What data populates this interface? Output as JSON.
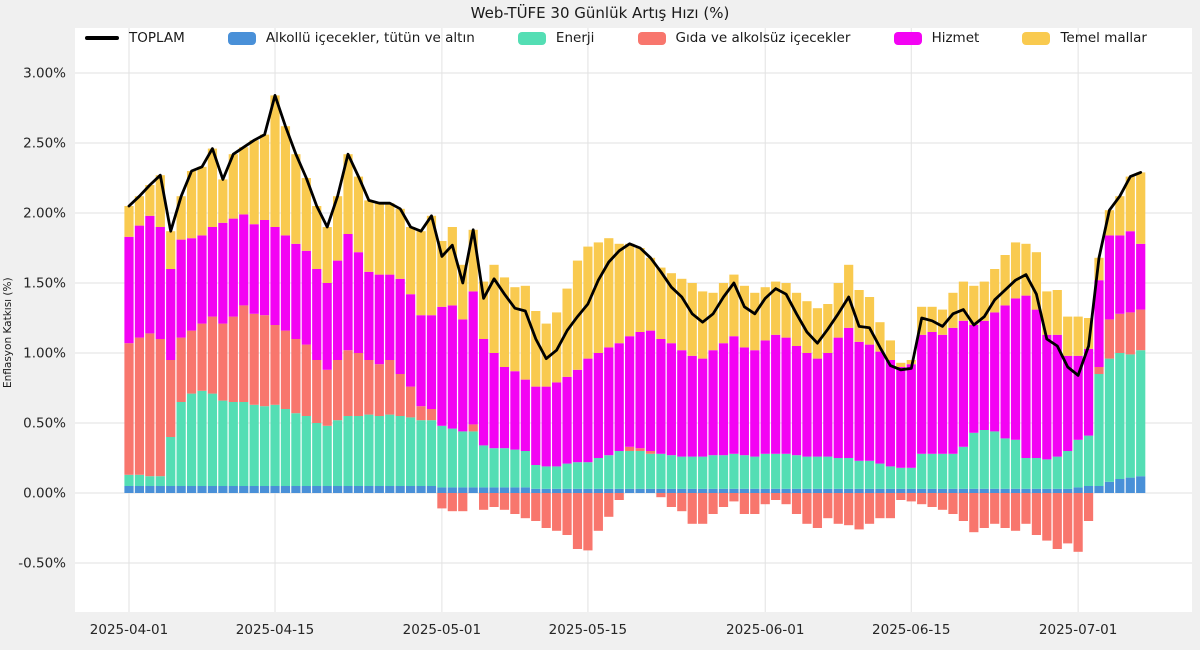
{
  "title": "Web-TÜFE 30 Günlük Artış Hızı (%)",
  "y_axis": {
    "label": "Enflasyon Katkısı (%)",
    "ticks": [
      {
        "label": "3.00%",
        "value": 3.0
      },
      {
        "label": "2.50%",
        "value": 2.5
      },
      {
        "label": "2.00%",
        "value": 2.0
      },
      {
        "label": "1.50%",
        "value": 1.5
      },
      {
        "label": "1.00%",
        "value": 1.0
      },
      {
        "label": "0.50%",
        "value": 0.5
      },
      {
        "label": "0.00%",
        "value": 0.0
      },
      {
        "label": "-0.50%",
        "value": -0.5
      }
    ]
  },
  "x_axis": {
    "ticks": [
      {
        "label": "2025-04-01",
        "day_index": 0
      },
      {
        "label": "2025-04-15",
        "day_index": 14
      },
      {
        "label": "2025-05-01",
        "day_index": 30
      },
      {
        "label": "2025-05-15",
        "day_index": 44
      },
      {
        "label": "2025-06-01",
        "day_index": 61
      },
      {
        "label": "2025-06-15",
        "day_index": 75
      },
      {
        "label": "2025-07-01",
        "day_index": 91
      }
    ]
  },
  "colors": {
    "figure_background": "#f0f0f0",
    "plot_background": "#ffffff",
    "grid": "#e2e2e2",
    "tick_text": "#262626",
    "total_line": "#000000"
  },
  "legend": [
    {
      "label": "TOPLAM",
      "swatch": "line",
      "color": "#000000"
    },
    {
      "label": "Alkollü içecekler, tütün ve altın",
      "swatch": "box",
      "color": "#4990d8"
    },
    {
      "label": "Enerji",
      "swatch": "box",
      "color": "#54deb4"
    },
    {
      "label": "Gıda ve alkolsüz içecekler",
      "swatch": "box",
      "color": "#f8766d"
    },
    {
      "label": "Hizmet",
      "swatch": "box",
      "color": "#f303f3"
    },
    {
      "label": "Temel mallar",
      "swatch": "box",
      "color": "#f9ca4f"
    }
  ],
  "chart_data": {
    "type": "bar",
    "subtype": "stacked-bars-with-total-line",
    "ylim": [
      -0.85,
      3.32
    ],
    "grid": true,
    "legend_position": "top",
    "x": [
      "2025-04-01",
      "2025-04-02",
      "2025-04-03",
      "2025-04-04",
      "2025-04-05",
      "2025-04-06",
      "2025-04-07",
      "2025-04-08",
      "2025-04-09",
      "2025-04-10",
      "2025-04-11",
      "2025-04-12",
      "2025-04-13",
      "2025-04-14",
      "2025-04-15",
      "2025-04-16",
      "2025-04-17",
      "2025-04-18",
      "2025-04-19",
      "2025-04-20",
      "2025-04-21",
      "2025-04-22",
      "2025-04-23",
      "2025-04-24",
      "2025-04-25",
      "2025-04-26",
      "2025-04-27",
      "2025-04-28",
      "2025-04-29",
      "2025-04-30",
      "2025-05-01",
      "2025-05-02",
      "2025-05-03",
      "2025-05-04",
      "2025-05-05",
      "2025-05-06",
      "2025-05-07",
      "2025-05-08",
      "2025-05-09",
      "2025-05-10",
      "2025-05-11",
      "2025-05-12",
      "2025-05-13",
      "2025-05-14",
      "2025-05-15",
      "2025-05-16",
      "2025-05-17",
      "2025-05-18",
      "2025-05-19",
      "2025-05-20",
      "2025-05-21",
      "2025-05-22",
      "2025-05-23",
      "2025-05-24",
      "2025-05-25",
      "2025-05-26",
      "2025-05-27",
      "2025-05-28",
      "2025-05-29",
      "2025-05-30",
      "2025-05-31",
      "2025-06-01",
      "2025-06-02",
      "2025-06-03",
      "2025-06-04",
      "2025-06-05",
      "2025-06-06",
      "2025-06-07",
      "2025-06-08",
      "2025-06-09",
      "2025-06-10",
      "2025-06-11",
      "2025-06-12",
      "2025-06-13",
      "2025-06-14",
      "2025-06-15",
      "2025-06-16",
      "2025-06-17",
      "2025-06-18",
      "2025-06-19",
      "2025-06-20",
      "2025-06-21",
      "2025-06-22",
      "2025-06-23",
      "2025-06-24",
      "2025-06-25",
      "2025-06-26",
      "2025-06-27",
      "2025-06-28",
      "2025-06-29",
      "2025-06-30",
      "2025-07-01",
      "2025-07-02",
      "2025-07-03",
      "2025-07-04",
      "2025-07-05",
      "2025-07-06",
      "2025-07-07"
    ],
    "series": [
      {
        "name": "Alkollü içecekler, tütün ve altın",
        "color": "#4990d8",
        "values": [
          0.05,
          0.05,
          0.05,
          0.05,
          0.05,
          0.05,
          0.05,
          0.05,
          0.05,
          0.05,
          0.05,
          0.05,
          0.05,
          0.05,
          0.05,
          0.05,
          0.05,
          0.05,
          0.05,
          0.05,
          0.05,
          0.05,
          0.05,
          0.05,
          0.05,
          0.05,
          0.05,
          0.05,
          0.05,
          0.05,
          0.04,
          0.04,
          0.04,
          0.04,
          0.04,
          0.04,
          0.04,
          0.04,
          0.04,
          0.03,
          0.03,
          0.03,
          0.03,
          0.03,
          0.03,
          0.03,
          0.03,
          0.03,
          0.03,
          0.03,
          0.03,
          0.03,
          0.03,
          0.03,
          0.03,
          0.03,
          0.03,
          0.03,
          0.03,
          0.03,
          0.03,
          0.03,
          0.03,
          0.03,
          0.03,
          0.03,
          0.03,
          0.03,
          0.03,
          0.03,
          0.03,
          0.03,
          0.03,
          0.03,
          0.03,
          0.03,
          0.03,
          0.03,
          0.03,
          0.03,
          0.03,
          0.03,
          0.03,
          0.03,
          0.03,
          0.03,
          0.03,
          0.03,
          0.03,
          0.03,
          0.03,
          0.04,
          0.05,
          0.05,
          0.08,
          0.1,
          0.11,
          0.12
        ]
      },
      {
        "name": "Enerji",
        "color": "#54deb4",
        "values": [
          0.08,
          0.08,
          0.07,
          0.07,
          0.35,
          0.6,
          0.66,
          0.68,
          0.66,
          0.61,
          0.6,
          0.6,
          0.58,
          0.57,
          0.58,
          0.55,
          0.52,
          0.5,
          0.45,
          0.43,
          0.47,
          0.5,
          0.5,
          0.51,
          0.5,
          0.51,
          0.5,
          0.49,
          0.47,
          0.47,
          0.44,
          0.42,
          0.4,
          0.4,
          0.3,
          0.28,
          0.28,
          0.27,
          0.26,
          0.17,
          0.16,
          0.16,
          0.18,
          0.19,
          0.19,
          0.22,
          0.24,
          0.27,
          0.27,
          0.27,
          0.25,
          0.25,
          0.24,
          0.23,
          0.23,
          0.23,
          0.24,
          0.24,
          0.25,
          0.24,
          0.23,
          0.25,
          0.25,
          0.25,
          0.24,
          0.23,
          0.23,
          0.23,
          0.22,
          0.22,
          0.2,
          0.2,
          0.18,
          0.16,
          0.15,
          0.15,
          0.25,
          0.25,
          0.25,
          0.25,
          0.3,
          0.4,
          0.42,
          0.41,
          0.36,
          0.35,
          0.22,
          0.22,
          0.21,
          0.23,
          0.27,
          0.34,
          0.36,
          0.8,
          0.88,
          0.9,
          0.88,
          0.9
        ]
      },
      {
        "name": "Gıda ve alkolsüz içecekler",
        "color": "#f8766d",
        "values": [
          0.94,
          0.98,
          1.02,
          0.98,
          0.55,
          0.46,
          0.45,
          0.48,
          0.55,
          0.55,
          0.61,
          0.69,
          0.65,
          0.65,
          0.57,
          0.56,
          0.53,
          0.51,
          0.45,
          0.4,
          0.43,
          0.47,
          0.45,
          0.39,
          0.37,
          0.39,
          0.3,
          0.22,
          0.1,
          0.08,
          -0.11,
          -0.13,
          -0.13,
          0.05,
          -0.12,
          -0.1,
          -0.12,
          -0.15,
          -0.18,
          -0.2,
          -0.25,
          -0.27,
          -0.3,
          -0.4,
          -0.41,
          -0.27,
          -0.17,
          -0.05,
          0.03,
          0.02,
          0.02,
          -0.03,
          -0.1,
          -0.13,
          -0.22,
          -0.22,
          -0.15,
          -0.1,
          -0.06,
          -0.15,
          -0.15,
          -0.08,
          -0.05,
          -0.08,
          -0.15,
          -0.22,
          -0.25,
          -0.18,
          -0.22,
          -0.23,
          -0.26,
          -0.22,
          -0.18,
          -0.18,
          -0.05,
          -0.06,
          -0.08,
          -0.1,
          -0.12,
          -0.15,
          -0.2,
          -0.28,
          -0.25,
          -0.22,
          -0.25,
          -0.27,
          -0.22,
          -0.3,
          -0.34,
          -0.4,
          -0.36,
          -0.42,
          -0.2,
          0.05,
          0.28,
          0.28,
          0.3,
          0.29
        ]
      },
      {
        "name": "Hizmet",
        "color": "#f303f3",
        "values": [
          0.76,
          0.8,
          0.84,
          0.8,
          0.65,
          0.7,
          0.66,
          0.63,
          0.64,
          0.72,
          0.7,
          0.65,
          0.64,
          0.68,
          0.7,
          0.68,
          0.68,
          0.67,
          0.65,
          0.62,
          0.71,
          0.83,
          0.72,
          0.63,
          0.64,
          0.61,
          0.68,
          0.66,
          0.65,
          0.67,
          0.85,
          0.88,
          0.8,
          0.95,
          0.76,
          0.68,
          0.58,
          0.56,
          0.51,
          0.56,
          0.57,
          0.6,
          0.62,
          0.66,
          0.74,
          0.75,
          0.77,
          0.77,
          0.79,
          0.83,
          0.86,
          0.82,
          0.8,
          0.76,
          0.72,
          0.7,
          0.75,
          0.8,
          0.84,
          0.77,
          0.76,
          0.81,
          0.85,
          0.83,
          0.78,
          0.74,
          0.7,
          0.74,
          0.86,
          0.93,
          0.85,
          0.83,
          0.8,
          0.76,
          0.72,
          0.74,
          0.85,
          0.87,
          0.85,
          0.9,
          0.9,
          0.77,
          0.78,
          0.85,
          0.95,
          1.01,
          1.16,
          1.06,
          0.89,
          0.87,
          0.68,
          0.6,
          0.62,
          0.62,
          0.6,
          0.56,
          0.58,
          0.47
        ]
      },
      {
        "name": "Temel mallar",
        "color": "#f9ca4f",
        "values": [
          0.22,
          0.21,
          0.22,
          0.37,
          0.27,
          0.31,
          0.48,
          0.49,
          0.56,
          0.31,
          0.46,
          0.48,
          0.6,
          0.61,
          0.94,
          0.78,
          0.64,
          0.52,
          0.45,
          0.4,
          0.46,
          0.57,
          0.54,
          0.51,
          0.51,
          0.51,
          0.5,
          0.48,
          0.6,
          0.71,
          0.47,
          0.56,
          0.39,
          0.44,
          0.41,
          0.63,
          0.64,
          0.6,
          0.67,
          0.54,
          0.45,
          0.5,
          0.63,
          0.78,
          0.8,
          0.79,
          0.78,
          0.71,
          0.66,
          0.6,
          0.52,
          0.51,
          0.5,
          0.51,
          0.52,
          0.48,
          0.41,
          0.43,
          0.44,
          0.44,
          0.41,
          0.38,
          0.38,
          0.39,
          0.38,
          0.37,
          0.36,
          0.35,
          0.39,
          0.45,
          0.37,
          0.34,
          0.21,
          0.14,
          0.03,
          0.03,
          0.2,
          0.18,
          0.18,
          0.25,
          0.28,
          0.28,
          0.28,
          0.31,
          0.36,
          0.4,
          0.37,
          0.41,
          0.31,
          0.32,
          0.28,
          0.28,
          0.22,
          0.16,
          0.18,
          0.28,
          0.39,
          0.51
        ]
      }
    ],
    "line": {
      "name": "TOPLAM",
      "color": "#000000",
      "values": [
        2.05,
        2.12,
        2.2,
        2.27,
        1.87,
        2.12,
        2.3,
        2.33,
        2.46,
        2.24,
        2.42,
        2.47,
        2.52,
        2.56,
        2.84,
        2.62,
        2.42,
        2.25,
        2.05,
        1.9,
        2.12,
        2.42,
        2.26,
        2.09,
        2.07,
        2.07,
        2.03,
        1.9,
        1.87,
        1.98,
        1.69,
        1.77,
        1.5,
        1.88,
        1.39,
        1.53,
        1.42,
        1.32,
        1.3,
        1.1,
        0.96,
        1.02,
        1.16,
        1.26,
        1.35,
        1.52,
        1.65,
        1.73,
        1.78,
        1.75,
        1.68,
        1.58,
        1.47,
        1.4,
        1.28,
        1.22,
        1.28,
        1.4,
        1.5,
        1.33,
        1.28,
        1.39,
        1.46,
        1.42,
        1.28,
        1.15,
        1.07,
        1.17,
        1.28,
        1.4,
        1.19,
        1.18,
        1.04,
        0.91,
        0.88,
        0.89,
        1.25,
        1.23,
        1.19,
        1.28,
        1.31,
        1.2,
        1.26,
        1.38,
        1.45,
        1.52,
        1.56,
        1.42,
        1.1,
        1.05,
        0.9,
        0.84,
        1.05,
        1.68,
        2.02,
        2.12,
        2.26,
        2.29
      ]
    }
  }
}
